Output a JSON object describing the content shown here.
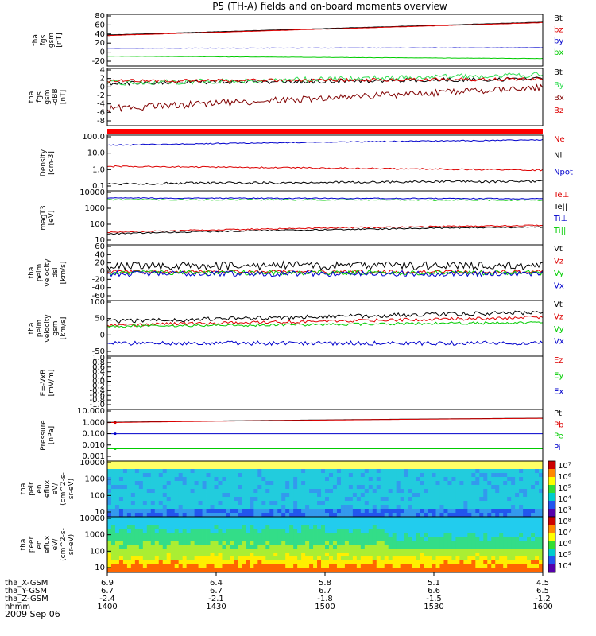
{
  "title": "P5 (TH-A) fields and on-board moments overview",
  "date": "2009 Sep 06",
  "colors": {
    "black": "#000000",
    "red": "#dd0000",
    "darkred": "#800000",
    "blue": "#0000cc",
    "green": "#00cc00",
    "lightgreen": "#33dd55"
  },
  "chart_data": [
    {
      "type": "line",
      "panel": "fgs",
      "ylabel": [
        "tha",
        "fgs",
        "gsm",
        "[nT]"
      ],
      "ylim": [
        -20,
        85
      ],
      "yticks": [
        "80",
        "60",
        "40",
        "20",
        "0",
        "-20"
      ],
      "series": [
        {
          "name": "Bt",
          "color": "#000000",
          "start": 43,
          "end": 69,
          "noise": 0.3
        },
        {
          "name": "bz",
          "color": "#dd0000",
          "start": 42,
          "end": 68,
          "noise": 0.3
        },
        {
          "name": "by",
          "color": "#0000cc",
          "start": 16,
          "end": 17,
          "noise": 0.4
        },
        {
          "name": "bx",
          "color": "#00cc00",
          "start": 0,
          "end": -5,
          "noise": 0.3
        }
      ]
    },
    {
      "type": "line",
      "panel": "fgs-dBB",
      "ylabel": [
        "tha",
        "fgs",
        "gsm",
        "-dBB",
        "[nT]"
      ],
      "ylim": [
        -9,
        4.5
      ],
      "yticks": [
        "4",
        "2",
        "0",
        "-2",
        "-4",
        "-6",
        "-8"
      ],
      "series": [
        {
          "name": "Bt",
          "color": "#000000",
          "start": 1,
          "end": 2,
          "noise": 0.5
        },
        {
          "name": "By",
          "color": "#33dd55",
          "start": 1,
          "end": 3,
          "noise": 0.6
        },
        {
          "name": "Bx",
          "color": "#800000",
          "start": -5,
          "end": 0,
          "noise": 0.8
        },
        {
          "name": "Bz",
          "color": "#dd0000",
          "start": 1.5,
          "end": 2,
          "noise": 0.4
        }
      ]
    },
    {
      "type": "line",
      "panel": "density",
      "scale": "log",
      "ylabel": [
        "Density",
        "[cm-3]"
      ],
      "ylim": [
        0.1,
        150
      ],
      "yticks": [
        "100.0",
        "10.0",
        "1.0",
        "0.1"
      ],
      "series": [
        {
          "name": "Ne",
          "color": "#dd0000",
          "start": 2.5,
          "end": 1.5,
          "noise": 0.04
        },
        {
          "name": "Ni",
          "color": "#000000",
          "start": 0.25,
          "end": 0.35,
          "noise": 0.07
        },
        {
          "name": "Npot",
          "color": "#0000cc",
          "start": 40,
          "end": 80,
          "noise": 0.03
        }
      ]
    },
    {
      "type": "line",
      "panel": "temperature",
      "scale": "log",
      "ylabel": [
        "magT3",
        "[eV]"
      ],
      "ylim": [
        4,
        11000
      ],
      "yticks": [
        "10000",
        "1000",
        "100",
        "10"
      ],
      "series": [
        {
          "name": "Te⊥",
          "color": "#dd0000",
          "start": 25,
          "end": 70,
          "noise": 0.04
        },
        {
          "name": "Te||",
          "color": "#000000",
          "start": 20,
          "end": 55,
          "noise": 0.04
        },
        {
          "name": "Ti⊥",
          "color": "#0000cc",
          "start": 3800,
          "end": 3500,
          "noise": 0.03
        },
        {
          "name": "Ti||",
          "color": "#00cc00",
          "start": 3000,
          "end": 2800,
          "noise": 0.03
        }
      ]
    },
    {
      "type": "line",
      "panel": "velocity-dsl",
      "ylabel": [
        "tha",
        "peim",
        "velocity",
        "dsl",
        "[km/s]"
      ],
      "ylim": [
        -60,
        60
      ],
      "yticks": [
        "60",
        "40",
        "20",
        "0",
        "-20",
        "-40",
        "-60"
      ],
      "series": [
        {
          "name": "Vt",
          "color": "#000000",
          "start": 15,
          "end": 15,
          "noise": 9
        },
        {
          "name": "Vz",
          "color": "#dd0000",
          "start": 2,
          "end": 2,
          "noise": 4
        },
        {
          "name": "Vy",
          "color": "#00cc00",
          "start": 0,
          "end": 0,
          "noise": 5
        },
        {
          "name": "Vx",
          "color": "#0000cc",
          "start": -2,
          "end": -2,
          "noise": 6
        }
      ]
    },
    {
      "type": "line",
      "panel": "velocity-gsm",
      "ylabel": [
        "tha",
        "peim",
        "velocity",
        "gsm",
        "[km/s]"
      ],
      "ylim": [
        -75,
        140
      ],
      "yticks": [
        "100",
        "50",
        "0",
        "-50"
      ],
      "series": [
        {
          "name": "Vt",
          "color": "#000000",
          "start": 60,
          "end": 95,
          "noise": 8
        },
        {
          "name": "Vz",
          "color": "#dd0000",
          "start": 45,
          "end": 75,
          "noise": 6
        },
        {
          "name": "Vy",
          "color": "#00cc00",
          "start": 40,
          "end": 55,
          "noise": 5
        },
        {
          "name": "Vx",
          "color": "#0000cc",
          "start": -25,
          "end": -25,
          "noise": 8
        }
      ]
    },
    {
      "type": "line",
      "panel": "efield",
      "ylabel": [
        "E=-VxB",
        "[mV/m]"
      ],
      "ylim": [
        -1,
        1
      ],
      "yticks": [
        "1.0",
        "0.8",
        "0.6",
        "0.4",
        "0.2",
        "0.0",
        "-0.2",
        "-0.4",
        "-0.6",
        "-0.8",
        "-1.0"
      ],
      "series": [
        {
          "name": "Ez",
          "color": "#dd0000"
        },
        {
          "name": "Ey",
          "color": "#00cc00"
        },
        {
          "name": "Ex",
          "color": "#0000cc"
        }
      ]
    },
    {
      "type": "line",
      "panel": "pressure",
      "scale": "log",
      "ylabel": [
        "Pressure",
        "[nPa]"
      ],
      "ylim": [
        0.001,
        10
      ],
      "yticks": [
        "10.000",
        "1.000",
        "0.100",
        "0.010",
        "0.001"
      ],
      "series": [
        {
          "name": "Pt",
          "color": "#000000",
          "start": 1.0,
          "end": 2.1,
          "noise": 0
        },
        {
          "name": "Pb",
          "color": "#dd0000",
          "start": 0.95,
          "end": 2.05,
          "noise": 0
        },
        {
          "name": "Pe",
          "color": "#00cc00",
          "start": 0.009,
          "end": 0.009,
          "noise": 0
        },
        {
          "name": "Pi",
          "color": "#0000cc",
          "start": 0.13,
          "end": 0.13,
          "noise": 0
        }
      ]
    },
    {
      "type": "heatmap",
      "panel": "ion-spectrogram",
      "ylabel": [
        "tha",
        "peir",
        "en",
        "eflux",
        "eV/",
        "(cm^2-s-",
        "sr-eV)"
      ],
      "yticks": [
        "10000",
        "1000",
        "100",
        "10"
      ],
      "colorbar_ticks": [
        "10⁷",
        "10⁶",
        "10⁵",
        "10⁴",
        "10³"
      ]
    },
    {
      "type": "heatmap",
      "panel": "electron-spectrogram",
      "ylabel": [
        "tha",
        "peer",
        "en",
        "eflux",
        "eV/",
        "(cm^2-s-",
        "sr-eV)"
      ],
      "yticks": [
        "10000",
        "1000",
        "100",
        "10"
      ],
      "colorbar_ticks": [
        "10⁸",
        "10⁷",
        "10⁶",
        "10⁵",
        "10⁴"
      ]
    }
  ],
  "xaxis": {
    "rows": [
      {
        "label": "tha_X-GSM",
        "values": [
          "6.9",
          "6.4",
          "5.8",
          "5.1",
          "4.5"
        ]
      },
      {
        "label": "tha_Y-GSM",
        "values": [
          "6.7",
          "6.7",
          "6.7",
          "6.6",
          "6.5"
        ]
      },
      {
        "label": "tha_Z-GSM",
        "values": [
          "-2.4",
          "-2.1",
          "-1.8",
          "-1.5",
          "-1.2"
        ]
      },
      {
        "label": "hhmm",
        "values": [
          "1400",
          "1430",
          "1500",
          "1530",
          "1600"
        ]
      }
    ]
  }
}
